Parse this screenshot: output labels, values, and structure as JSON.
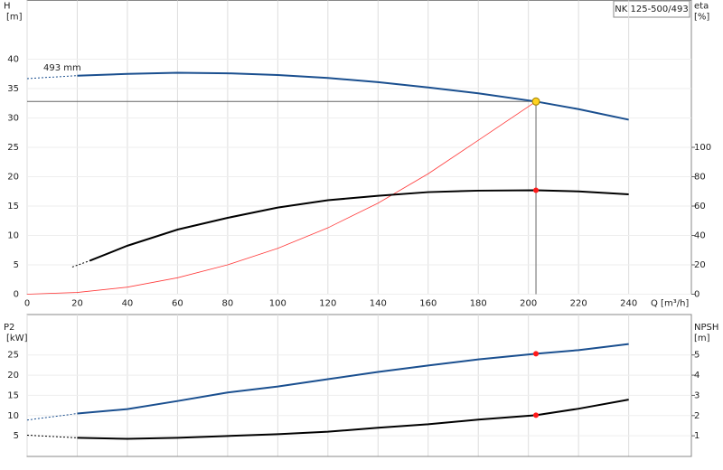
{
  "label": "NK 125-500/493",
  "chart_data": [
    {
      "type": "line",
      "ylabel": [
        "H",
        "[m]"
      ],
      "y2label": [
        "eta",
        "[%]"
      ],
      "xlabel": "Q [m³/h]",
      "annotation": "493 mm",
      "xlim": [
        0,
        265
      ],
      "xticks": [
        0,
        20,
        40,
        60,
        80,
        100,
        120,
        140,
        160,
        180,
        200,
        220,
        240
      ],
      "ylim": [
        0,
        50
      ],
      "yticks": [
        0,
        5,
        10,
        15,
        20,
        25,
        30,
        35,
        40
      ],
      "y2lim": [
        0,
        200
      ],
      "y2ticks": [
        0,
        20,
        40,
        60,
        80,
        100
      ],
      "grid": true,
      "series": [
        {
          "color": "#1a4f8f",
          "style": "dashed",
          "x": [
            0,
            20
          ],
          "values": [
            36.7,
            37.2
          ]
        },
        {
          "color": "#1a4f8f",
          "x": [
            20,
            40,
            60,
            80,
            100,
            120,
            140,
            160,
            180,
            203,
            220,
            240
          ],
          "values": [
            37.2,
            37.5,
            37.7,
            37.6,
            37.3,
            36.8,
            36.1,
            35.2,
            34.2,
            32.8,
            31.5,
            29.7
          ]
        },
        {
          "color": "#ff3b3b",
          "thin": true,
          "x": [
            0,
            20,
            40,
            60,
            80,
            100,
            120,
            140,
            160,
            180,
            203
          ],
          "values": [
            0,
            0.3,
            1.2,
            2.8,
            5,
            7.8,
            11.3,
            15.5,
            20.5,
            26.2,
            32.8
          ]
        },
        {
          "color": "#000000",
          "style": "dashed",
          "axis": "y2",
          "x": [
            18,
            25
          ],
          "values": [
            18.5,
            22.8
          ]
        },
        {
          "color": "#000000",
          "axis": "y2",
          "x": [
            25,
            40,
            60,
            80,
            100,
            120,
            140,
            160,
            180,
            203,
            220,
            240
          ],
          "values": [
            22.8,
            33,
            44,
            52,
            59,
            64,
            67,
            69.5,
            70.5,
            70.8,
            70,
            68
          ]
        }
      ],
      "points": [
        {
          "color": "#ffd21f",
          "x": 203,
          "value": 32.8,
          "guides": true
        },
        {
          "color": "#ff1a1a",
          "axis": "y2",
          "x": 203,
          "value": 70.8
        }
      ]
    },
    {
      "type": "line",
      "ylabel": [
        "P2",
        "[kW]"
      ],
      "y2label": [
        "NPSH",
        "[m]"
      ],
      "xlim": [
        0,
        265
      ],
      "ylim": [
        0,
        35
      ],
      "yticks": [
        5,
        10,
        15,
        20,
        25
      ],
      "y2lim": [
        0,
        7
      ],
      "y2ticks": [
        1,
        2,
        3,
        4,
        5
      ],
      "grid": true,
      "series": [
        {
          "color": "#1a4f8f",
          "style": "dashed",
          "x": [
            0,
            20
          ],
          "values": [
            8.9,
            10.5
          ]
        },
        {
          "color": "#1a4f8f",
          "x": [
            20,
            40,
            60,
            80,
            100,
            120,
            140,
            160,
            180,
            203,
            220,
            240
          ],
          "values": [
            10.5,
            11.6,
            13.6,
            15.7,
            17.2,
            19,
            20.8,
            22.4,
            23.9,
            25.3,
            26.2,
            27.7
          ]
        },
        {
          "color": "#000000",
          "style": "dashed",
          "axis": "y2",
          "x": [
            0,
            20
          ],
          "values": [
            1.03,
            0.9
          ]
        },
        {
          "color": "#000000",
          "axis": "y2",
          "x": [
            20,
            40,
            60,
            80,
            100,
            120,
            140,
            160,
            180,
            203,
            220,
            240
          ],
          "values": [
            0.9,
            0.85,
            0.9,
            0.99,
            1.08,
            1.2,
            1.4,
            1.57,
            1.8,
            2.02,
            2.34,
            2.79
          ]
        }
      ],
      "points": [
        {
          "color": "#ff1a1a",
          "x": 203,
          "value": 25.3
        },
        {
          "color": "#ff1a1a",
          "axis": "y2",
          "x": 203,
          "value": 2.02
        }
      ]
    }
  ]
}
